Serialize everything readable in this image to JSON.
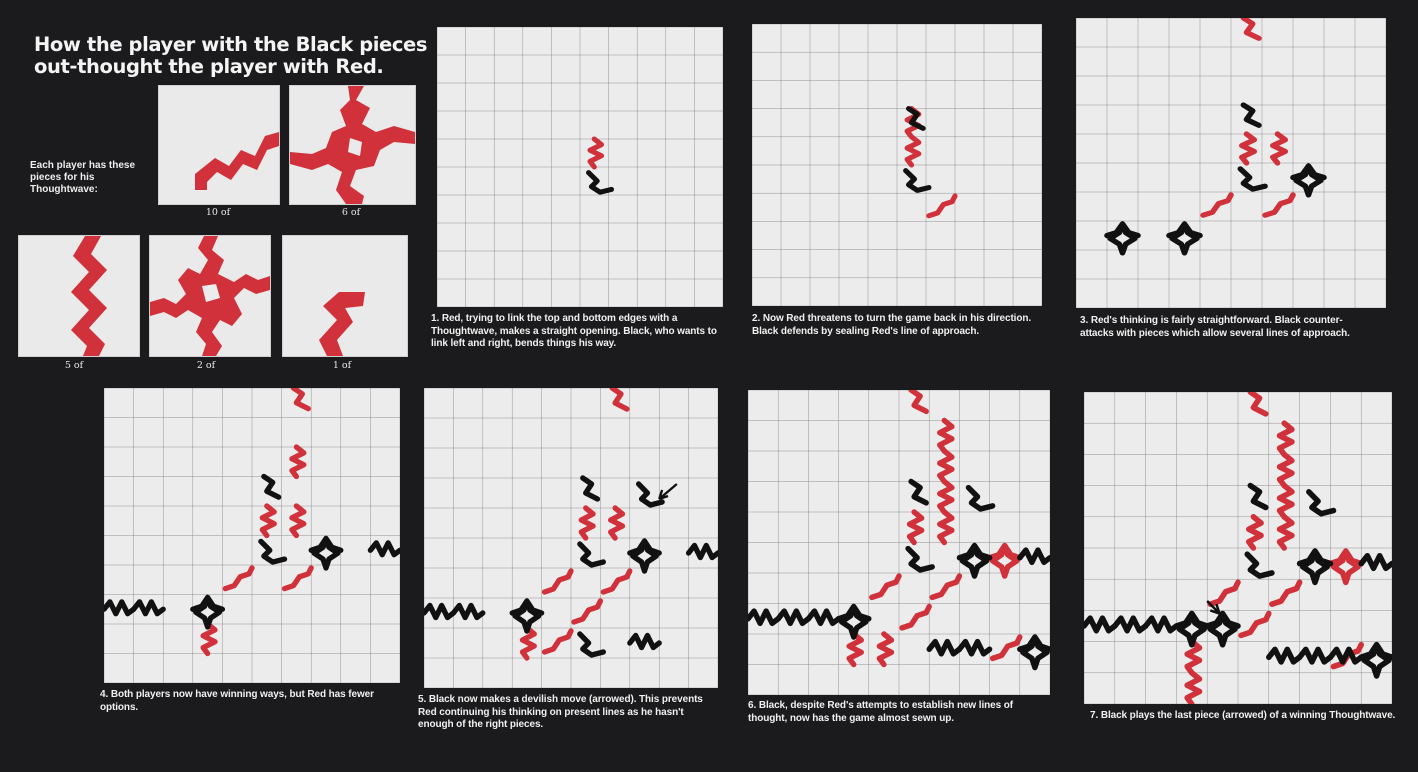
{
  "title": {
    "line1": "How the player with the Black pieces",
    "line2": "out-thought the player with Red."
  },
  "pieces": {
    "intro": "Each player has these pieces for his Thoughtwave:",
    "items": [
      {
        "shape": "corner-pair-piece",
        "count": "10 of"
      },
      {
        "shape": "cross-bend-piece",
        "count": "6 of"
      },
      {
        "shape": "straight-wave-piece",
        "count": "5 of"
      },
      {
        "shape": "four-way-piece",
        "count": "2 of"
      },
      {
        "shape": "single-bend-piece",
        "count": "1 of"
      }
    ]
  },
  "colors": {
    "red": "#d0313a",
    "black": "#111111",
    "board": "#ececec",
    "grid": "#6d6d6d",
    "background": "#1b1b1d"
  },
  "boards": [
    {
      "step": 1,
      "caption": "1. Red, trying to link the top and bottom edges with a Thoughtwave, makes a straight opening. Black, who wants to link left and right, bends things his way."
    },
    {
      "step": 2,
      "caption": "2. Now Red threatens to turn the game back in his direction. Black defends by sealing Red's line of approach."
    },
    {
      "step": 3,
      "caption": "3. Red's thinking is fairly straightforward. Black counter-attacks with pieces which allow several lines of approach."
    },
    {
      "step": 4,
      "caption": "4. Both players now have winning ways, but Red has fewer options."
    },
    {
      "step": 5,
      "caption": "5. Black now makes a devilish move (arrowed). This prevents Red continuing his thinking on present lines as he hasn't enough of the right pieces."
    },
    {
      "step": 6,
      "caption": "6. Black, despite Red's attempts to establish new lines of thought, now has the game almost sewn up."
    },
    {
      "step": 7,
      "caption": "7. Black plays the last piece (arrowed) of a winning Thoughtwave."
    }
  ]
}
